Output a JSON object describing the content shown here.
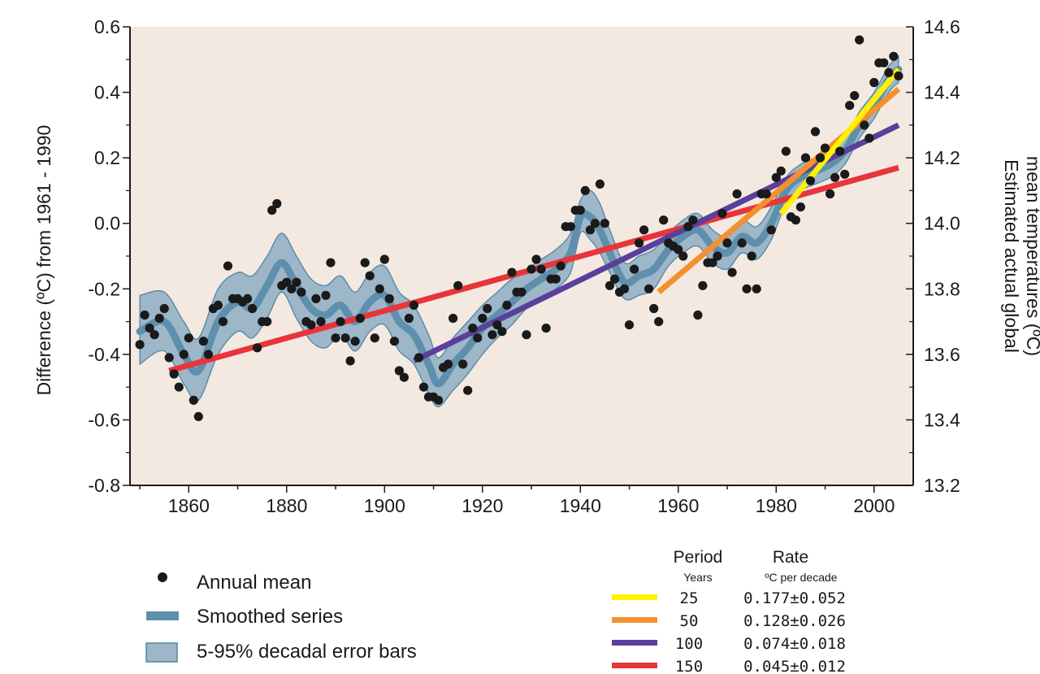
{
  "chart_data": {
    "type": "line",
    "title": "",
    "y_left_label": "Difference (ºC) from 1961 - 1990",
    "y_right_label_line1": "Estimated actual global",
    "y_right_label_line2": "mean temperatures (ºC)",
    "xlim": [
      1848,
      2008
    ],
    "ylim": [
      -0.8,
      0.6
    ],
    "y_right_lim": [
      13.2,
      14.6
    ],
    "x_ticks": [
      1860,
      1880,
      1900,
      1920,
      1940,
      1960,
      1980,
      2000
    ],
    "y_ticks": [
      -0.8,
      -0.6,
      -0.4,
      -0.2,
      0.0,
      0.2,
      0.4,
      0.6
    ],
    "y_tick_labels": [
      "-0.8",
      "-0.6",
      "-0.4",
      "-0.2",
      "0.0",
      "0.2",
      "0.4",
      "0.6"
    ],
    "y_right_tick_labels": [
      "13.2",
      "13.4",
      "13.6",
      "13.8",
      "14.0",
      "14.2",
      "14.4",
      "14.6"
    ],
    "grid": false,
    "colors": {
      "plot_bg": "#f3e9e1",
      "dots": "#1a1a1a",
      "smoothed": "#5e8fad",
      "band_fill": "#9db6c8",
      "band_edge": "#4f86a6",
      "trend_25": "#fff200",
      "trend_50": "#f4902e",
      "trend_100": "#5b3f9b",
      "trend_150": "#e8343a"
    },
    "annual_mean": {
      "name": "Annual mean",
      "x": [
        1850,
        1851,
        1852,
        1853,
        1854,
        1855,
        1856,
        1857,
        1858,
        1859,
        1860,
        1861,
        1862,
        1863,
        1864,
        1865,
        1866,
        1867,
        1868,
        1869,
        1870,
        1871,
        1872,
        1873,
        1874,
        1875,
        1876,
        1877,
        1878,
        1879,
        1880,
        1881,
        1882,
        1883,
        1884,
        1885,
        1886,
        1887,
        1888,
        1889,
        1890,
        1891,
        1892,
        1893,
        1894,
        1895,
        1896,
        1897,
        1898,
        1899,
        1900,
        1901,
        1902,
        1903,
        1904,
        1905,
        1906,
        1907,
        1908,
        1909,
        1910,
        1911,
        1912,
        1913,
        1914,
        1915,
        1916,
        1917,
        1918,
        1919,
        1920,
        1921,
        1922,
        1923,
        1924,
        1925,
        1926,
        1927,
        1928,
        1929,
        1930,
        1931,
        1932,
        1933,
        1934,
        1935,
        1936,
        1937,
        1938,
        1939,
        1940,
        1941,
        1942,
        1943,
        1944,
        1945,
        1946,
        1947,
        1948,
        1949,
        1950,
        1951,
        1952,
        1953,
        1954,
        1955,
        1956,
        1957,
        1958,
        1959,
        1960,
        1961,
        1962,
        1963,
        1964,
        1965,
        1966,
        1967,
        1968,
        1969,
        1970,
        1971,
        1972,
        1973,
        1974,
        1975,
        1976,
        1977,
        1978,
        1979,
        1980,
        1981,
        1982,
        1983,
        1984,
        1985,
        1986,
        1987,
        1988,
        1989,
        1990,
        1991,
        1992,
        1993,
        1994,
        1995,
        1996,
        1997,
        1998,
        1999,
        2000,
        2001,
        2002,
        2003,
        2004,
        2005
      ],
      "y": [
        -0.37,
        -0.28,
        -0.32,
        -0.34,
        -0.29,
        -0.26,
        -0.41,
        -0.46,
        -0.5,
        -0.4,
        -0.35,
        -0.54,
        -0.59,
        -0.36,
        -0.4,
        -0.26,
        -0.25,
        -0.3,
        -0.13,
        -0.23,
        -0.23,
        -0.24,
        -0.23,
        -0.26,
        -0.38,
        -0.3,
        -0.3,
        0.04,
        0.06,
        -0.19,
        -0.18,
        -0.2,
        -0.18,
        -0.21,
        -0.3,
        -0.31,
        -0.23,
        -0.3,
        -0.22,
        -0.12,
        -0.35,
        -0.3,
        -0.35,
        -0.42,
        -0.36,
        -0.29,
        -0.12,
        -0.16,
        -0.35,
        -0.2,
        -0.11,
        -0.23,
        -0.36,
        -0.45,
        -0.47,
        -0.29,
        -0.25,
        -0.41,
        -0.5,
        -0.53,
        -0.53,
        -0.54,
        -0.44,
        -0.43,
        -0.29,
        -0.19,
        -0.43,
        -0.51,
        -0.32,
        -0.35,
        -0.29,
        -0.26,
        -0.34,
        -0.31,
        -0.33,
        -0.25,
        -0.15,
        -0.21,
        -0.21,
        -0.34,
        -0.14,
        -0.11,
        -0.14,
        -0.32,
        -0.17,
        -0.17,
        -0.13,
        -0.01,
        -0.01,
        0.04,
        0.04,
        0.1,
        -0.02,
        0.0,
        0.12,
        0.0,
        -0.19,
        -0.17,
        -0.21,
        -0.2,
        -0.31,
        -0.14,
        -0.06,
        -0.02,
        -0.2,
        -0.26,
        -0.3,
        0.01,
        -0.06,
        -0.07,
        -0.08,
        -0.1,
        -0.01,
        0.01,
        -0.28,
        -0.19,
        -0.12,
        -0.12,
        -0.1,
        0.03,
        -0.06,
        -0.15,
        0.09,
        -0.06,
        -0.2,
        -0.1,
        -0.2,
        0.09,
        0.09,
        -0.02,
        0.14,
        0.16,
        0.22,
        0.02,
        0.01,
        0.05,
        0.2,
        0.13,
        0.28,
        0.2,
        0.23,
        0.09,
        0.14,
        0.22,
        0.15,
        0.36,
        0.39,
        0.56,
        0.3,
        0.26,
        0.43,
        0.49,
        0.49,
        0.46,
        0.51,
        0.45
      ]
    },
    "smoothed": {
      "name": "Smoothed series",
      "x": [
        1850,
        1855,
        1859,
        1862,
        1866,
        1870,
        1873,
        1876,
        1879,
        1882,
        1885,
        1888,
        1891,
        1894,
        1897,
        1900,
        1903,
        1906,
        1909,
        1911,
        1914,
        1917,
        1920,
        1923,
        1926,
        1929,
        1932,
        1935,
        1938,
        1940,
        1942,
        1944,
        1946,
        1949,
        1952,
        1955,
        1958,
        1961,
        1964,
        1967,
        1970,
        1973,
        1976,
        1979,
        1982,
        1985,
        1988,
        1991,
        1994,
        1997,
        2000,
        2003,
        2005
      ],
      "y": [
        -0.33,
        -0.3,
        -0.4,
        -0.45,
        -0.3,
        -0.24,
        -0.26,
        -0.19,
        -0.12,
        -0.19,
        -0.26,
        -0.28,
        -0.25,
        -0.3,
        -0.24,
        -0.22,
        -0.3,
        -0.34,
        -0.43,
        -0.49,
        -0.43,
        -0.38,
        -0.32,
        -0.28,
        -0.24,
        -0.2,
        -0.17,
        -0.14,
        -0.09,
        0.02,
        0.02,
        -0.02,
        -0.09,
        -0.18,
        -0.16,
        -0.14,
        -0.08,
        -0.04,
        -0.02,
        -0.07,
        -0.09,
        -0.04,
        -0.06,
        0.0,
        0.1,
        0.14,
        0.16,
        0.18,
        0.22,
        0.3,
        0.36,
        0.44,
        0.47
      ]
    },
    "error_band": {
      "name": "5-95% decadal error bars",
      "x": [
        1850,
        1855,
        1859,
        1862,
        1866,
        1870,
        1873,
        1876,
        1879,
        1882,
        1885,
        1888,
        1891,
        1894,
        1897,
        1900,
        1903,
        1906,
        1909,
        1911,
        1914,
        1917,
        1920,
        1923,
        1926,
        1929,
        1932,
        1935,
        1938,
        1940,
        1942,
        1944,
        1946,
        1949,
        1952,
        1955,
        1958,
        1961,
        1964,
        1967,
        1970,
        1973,
        1976,
        1979,
        1982,
        1985,
        1988,
        1991,
        1994,
        1997,
        2000,
        2003,
        2005
      ],
      "upper": [
        -0.22,
        -0.21,
        -0.3,
        -0.35,
        -0.2,
        -0.15,
        -0.16,
        -0.1,
        -0.03,
        -0.1,
        -0.17,
        -0.19,
        -0.16,
        -0.21,
        -0.15,
        -0.13,
        -0.21,
        -0.25,
        -0.34,
        -0.41,
        -0.35,
        -0.3,
        -0.25,
        -0.21,
        -0.17,
        -0.14,
        -0.11,
        -0.08,
        -0.03,
        0.07,
        0.1,
        0.06,
        -0.02,
        -0.12,
        -0.1,
        -0.08,
        -0.03,
        0.01,
        0.03,
        -0.02,
        -0.04,
        0.01,
        -0.01,
        0.05,
        0.14,
        0.18,
        0.2,
        0.22,
        0.26,
        0.34,
        0.4,
        0.48,
        0.51
      ],
      "lower": [
        -0.43,
        -0.39,
        -0.49,
        -0.54,
        -0.4,
        -0.33,
        -0.35,
        -0.29,
        -0.21,
        -0.29,
        -0.36,
        -0.38,
        -0.34,
        -0.39,
        -0.33,
        -0.31,
        -0.39,
        -0.43,
        -0.52,
        -0.56,
        -0.51,
        -0.46,
        -0.4,
        -0.35,
        -0.31,
        -0.26,
        -0.23,
        -0.2,
        -0.15,
        -0.03,
        -0.05,
        -0.09,
        -0.15,
        -0.23,
        -0.22,
        -0.2,
        -0.13,
        -0.09,
        -0.07,
        -0.12,
        -0.14,
        -0.09,
        -0.11,
        -0.05,
        0.06,
        0.1,
        0.12,
        0.14,
        0.18,
        0.26,
        0.32,
        0.4,
        0.43
      ]
    },
    "trends": [
      {
        "period": "25",
        "rate": "0.177±0.052",
        "x": [
          1981,
          2005
        ],
        "y": [
          0.03,
          0.47
        ]
      },
      {
        "period": "50",
        "rate": "0.128±0.026",
        "x": [
          1956,
          2005
        ],
        "y": [
          -0.21,
          0.41
        ]
      },
      {
        "period": "100",
        "rate": "0.074±0.018",
        "x": [
          1906,
          2005
        ],
        "y": [
          -0.42,
          0.3
        ]
      },
      {
        "period": "150",
        "rate": "0.045±0.012",
        "x": [
          1856,
          2005
        ],
        "y": [
          -0.45,
          0.17
        ]
      }
    ],
    "legend": {
      "annual_mean": "Annual mean",
      "smoothed": "Smoothed series",
      "error_bars": "5-95% decadal error bars"
    },
    "rate_table": {
      "period_header": "Period",
      "period_sub": "Years",
      "rate_header": "Rate",
      "rate_sub": "ºC  per decade"
    }
  }
}
